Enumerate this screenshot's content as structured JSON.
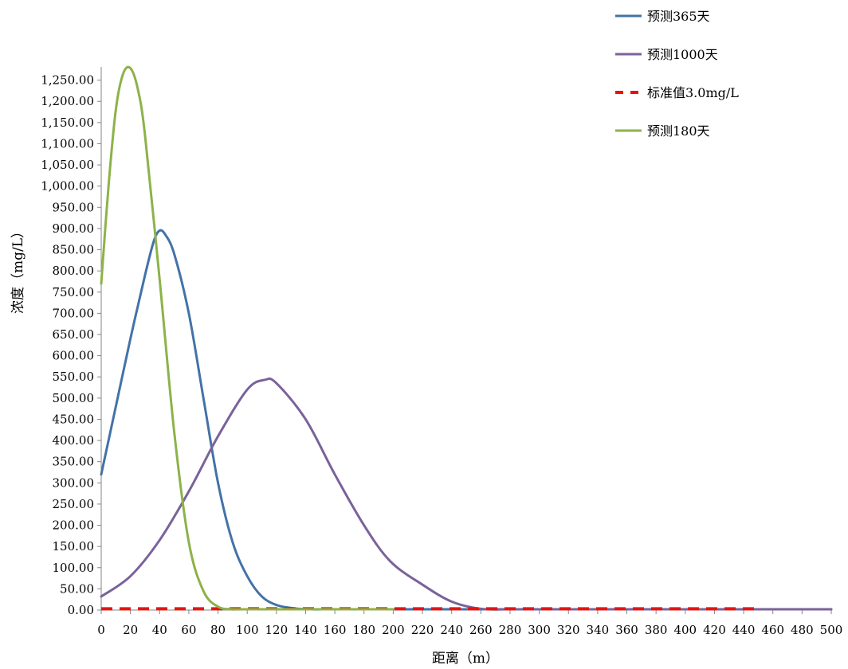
{
  "chart_data": {
    "type": "line",
    "title": "",
    "xlabel": "距离（m）",
    "ylabel": "浓度（mg/L）",
    "xlim": [
      0,
      500
    ],
    "ylim": [
      0,
      1300
    ],
    "x_ticks": [
      "0",
      "20",
      "40",
      "60",
      "80",
      "100",
      "120",
      "140",
      "160",
      "180",
      "200",
      "220",
      "240",
      "260",
      "280",
      "300",
      "320",
      "340",
      "360",
      "380",
      "400",
      "420",
      "440",
      "460",
      "480",
      "500"
    ],
    "y_ticks": [
      "0.00",
      "50.00",
      "100.00",
      "150.00",
      "200.00",
      "250.00",
      "300.00",
      "350.00",
      "400.00",
      "450.00",
      "500.00",
      "550.00",
      "600.00",
      "650.00",
      "700.00",
      "750.00",
      "800.00",
      "850.00",
      "900.00",
      "950.00",
      "1,000.00",
      "1,050.00",
      "1,100.00",
      "1,150.00",
      "1,200.00",
      "1,250.00"
    ],
    "grid": false,
    "legend_position": "top-right",
    "series": [
      {
        "name": "预测365天",
        "color": "#4472a8",
        "dash": false,
        "x": [
          0,
          10,
          20,
          30,
          36,
          40,
          44,
          50,
          60,
          70,
          80,
          90,
          100,
          110,
          120,
          130,
          140,
          160,
          200,
          500
        ],
        "y": [
          320,
          480,
          640,
          790,
          870,
          895,
          885,
          840,
          700,
          500,
          300,
          160,
          80,
          32,
          12,
          5,
          2,
          0.5,
          0,
          0
        ]
      },
      {
        "name": "预测1000天",
        "color": "#7a629a",
        "dash": false,
        "x": [
          0,
          20,
          40,
          60,
          80,
          100,
          112,
          120,
          140,
          160,
          180,
          198,
          220,
          240,
          260,
          280,
          300,
          400,
          500
        ],
        "y": [
          32,
          80,
          165,
          280,
          410,
          520,
          543,
          535,
          450,
          320,
          200,
          115,
          60,
          20,
          3,
          0.5,
          0,
          0,
          0
        ]
      },
      {
        "name": "标准值3.0mg/L",
        "color": "#e8130e",
        "dash": true,
        "x": [
          0,
          450
        ],
        "y": [
          3,
          3
        ]
      },
      {
        "name": "预测180天",
        "color": "#8db24a",
        "dash": false,
        "x": [
          0,
          5,
          10,
          15,
          20,
          25,
          30,
          40,
          50,
          60,
          70,
          80,
          90,
          100,
          200
        ],
        "y": [
          770,
          1000,
          1180,
          1265,
          1278,
          1230,
          1120,
          780,
          420,
          160,
          45,
          8,
          1,
          0,
          0
        ]
      }
    ]
  }
}
